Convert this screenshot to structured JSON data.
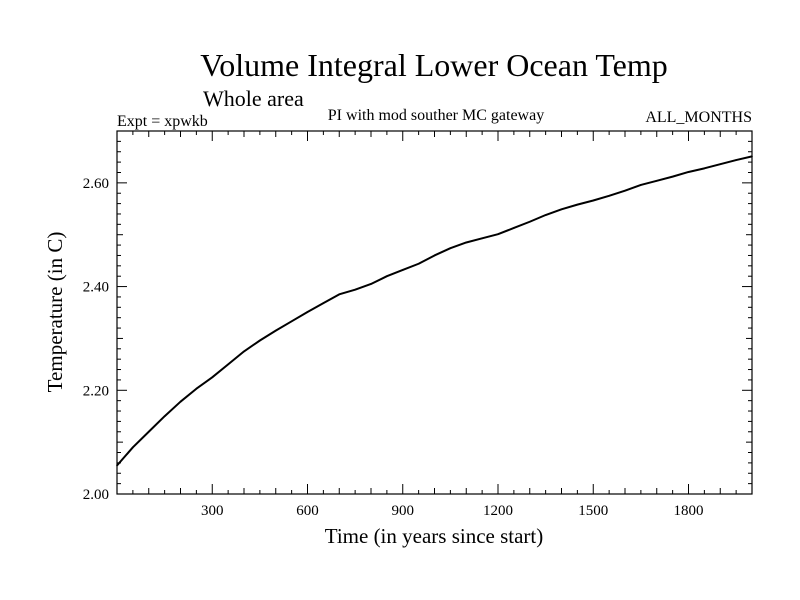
{
  "chart_data": {
    "type": "line",
    "title": "Volume Integral Lower Ocean Temp",
    "subtitle": "Whole area",
    "experiment_label": "Expt = xpwkb",
    "experiment_description": "PI with mod souther MC gateway",
    "months_label": "ALL_MONTHS",
    "xlabel": "Time (in years since start)",
    "ylabel": "Temperature (in C)",
    "xlim": [
      0,
      2000
    ],
    "ylim": [
      2.0,
      2.7
    ],
    "x_ticks": [
      300,
      600,
      900,
      1200,
      1500,
      1800
    ],
    "x_tick_labels": [
      "300",
      "600",
      "900",
      "1200",
      "1500",
      "1800"
    ],
    "y_ticks": [
      2.0,
      2.2,
      2.4,
      2.6
    ],
    "y_tick_labels": [
      "2.00",
      "2.20",
      "2.40",
      "2.60"
    ],
    "grid": false,
    "series": [
      {
        "name": "Volume Integral Lower Ocean Temp",
        "color": "#000000",
        "x": [
          0,
          50,
          100,
          150,
          200,
          250,
          300,
          350,
          400,
          450,
          500,
          550,
          600,
          650,
          700,
          750,
          800,
          850,
          900,
          950,
          1000,
          1050,
          1100,
          1150,
          1200,
          1250,
          1300,
          1350,
          1400,
          1450,
          1500,
          1550,
          1600,
          1650,
          1700,
          1750,
          1800,
          1850,
          1900,
          1950,
          2000
        ],
        "y": [
          2.055,
          2.09,
          2.12,
          2.15,
          2.178,
          2.203,
          2.225,
          2.25,
          2.275,
          2.296,
          2.315,
          2.333,
          2.351,
          2.368,
          2.385,
          2.394,
          2.405,
          2.42,
          2.432,
          2.444,
          2.46,
          2.474,
          2.485,
          2.493,
          2.501,
          2.513,
          2.525,
          2.538,
          2.549,
          2.558,
          2.566,
          2.575,
          2.585,
          2.596,
          2.604,
          2.612,
          2.621,
          2.628,
          2.636,
          2.644,
          2.651
        ]
      }
    ]
  }
}
